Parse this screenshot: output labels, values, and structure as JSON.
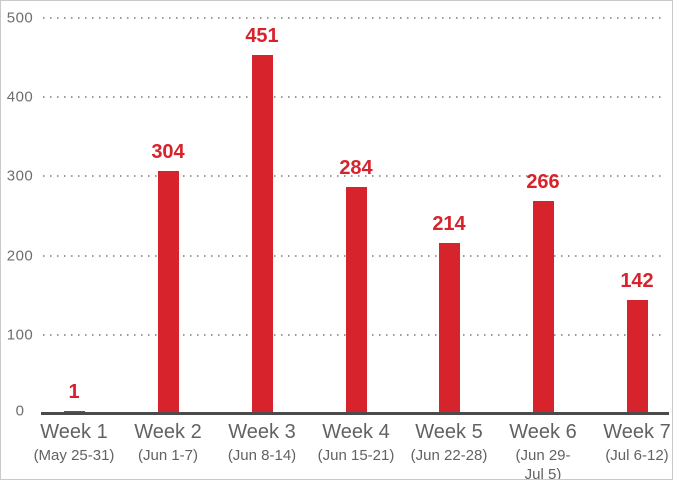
{
  "chart_data": {
    "type": "bar",
    "categories": [
      "Week 1",
      "Week 2",
      "Week 3",
      "Week 4",
      "Week 5",
      "Week 6",
      "Week 7"
    ],
    "category_sublabels": [
      "(May 25-31)",
      "(Jun 1-7)",
      "(Jun 8-14)",
      "(Jun 15-21)",
      "(Jun 22-28)",
      "(Jun 29-\nJul 5)",
      "(Jul 6-12)"
    ],
    "values": [
      1,
      304,
      451,
      284,
      214,
      266,
      142
    ],
    "value_labels": [
      "1",
      "304",
      "451",
      "284",
      "214",
      "266",
      "142"
    ],
    "yticks": [
      0,
      100,
      200,
      300,
      400,
      500
    ],
    "ylim": [
      0,
      500
    ],
    "grid": "dotted horizontal gridlines at each 100",
    "legend": "none",
    "bar_color": "#d7232b",
    "value_label_color": "#d7232b",
    "axis_text_color": "#6e6e70",
    "x_label_color": "#626266",
    "axis_line_color": "#4b4b4d",
    "frame_border_color": "#c9c9c9"
  }
}
